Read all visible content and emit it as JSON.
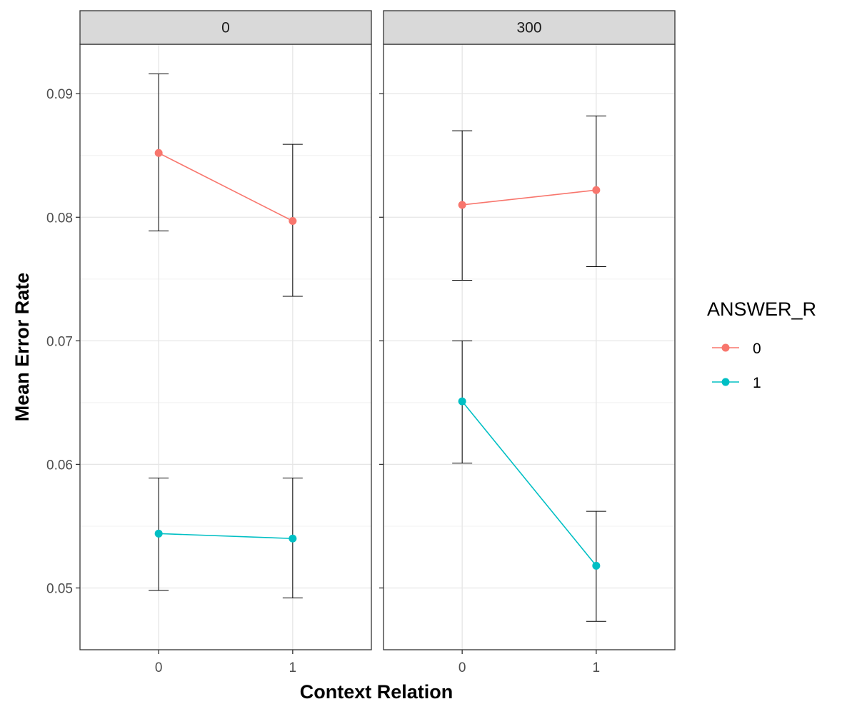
{
  "chart_data": {
    "type": "line",
    "xlabel": "Context Relation",
    "ylabel": "Mean Error Rate",
    "x_categories": [
      "0",
      "1"
    ],
    "ylim": [
      0.045,
      0.094
    ],
    "y_ticks": [
      0.05,
      0.06,
      0.07,
      0.08,
      0.09
    ],
    "y_tick_labels": [
      "0.05",
      "0.06",
      "0.07",
      "0.08",
      "0.09"
    ],
    "grid": true,
    "legend": {
      "title": "ANSWER_R",
      "position": "right",
      "entries": [
        {
          "label": "0",
          "color": "#F8766D"
        },
        {
          "label": "1",
          "color": "#00BFC4"
        }
      ]
    },
    "facets": [
      {
        "label": "0",
        "series": [
          {
            "group": "0",
            "color": "#F8766D",
            "x": [
              "0",
              "1"
            ],
            "y": [
              0.0852,
              0.0797
            ],
            "ymin": [
              0.0789,
              0.0736
            ],
            "ymax": [
              0.0916,
              0.0859
            ]
          },
          {
            "group": "1",
            "color": "#00BFC4",
            "x": [
              "0",
              "1"
            ],
            "y": [
              0.0544,
              0.054
            ],
            "ymin": [
              0.0498,
              0.0492
            ],
            "ymax": [
              0.0589,
              0.0589
            ]
          }
        ]
      },
      {
        "label": "300",
        "series": [
          {
            "group": "0",
            "color": "#F8766D",
            "x": [
              "0",
              "1"
            ],
            "y": [
              0.081,
              0.0822
            ],
            "ymin": [
              0.0749,
              0.076
            ],
            "ymax": [
              0.087,
              0.0882
            ]
          },
          {
            "group": "1",
            "color": "#00BFC4",
            "x": [
              "0",
              "1"
            ],
            "y": [
              0.0651,
              0.0518
            ],
            "ymin": [
              0.0601,
              0.0473
            ],
            "ymax": [
              0.07,
              0.0562
            ]
          }
        ]
      }
    ]
  }
}
